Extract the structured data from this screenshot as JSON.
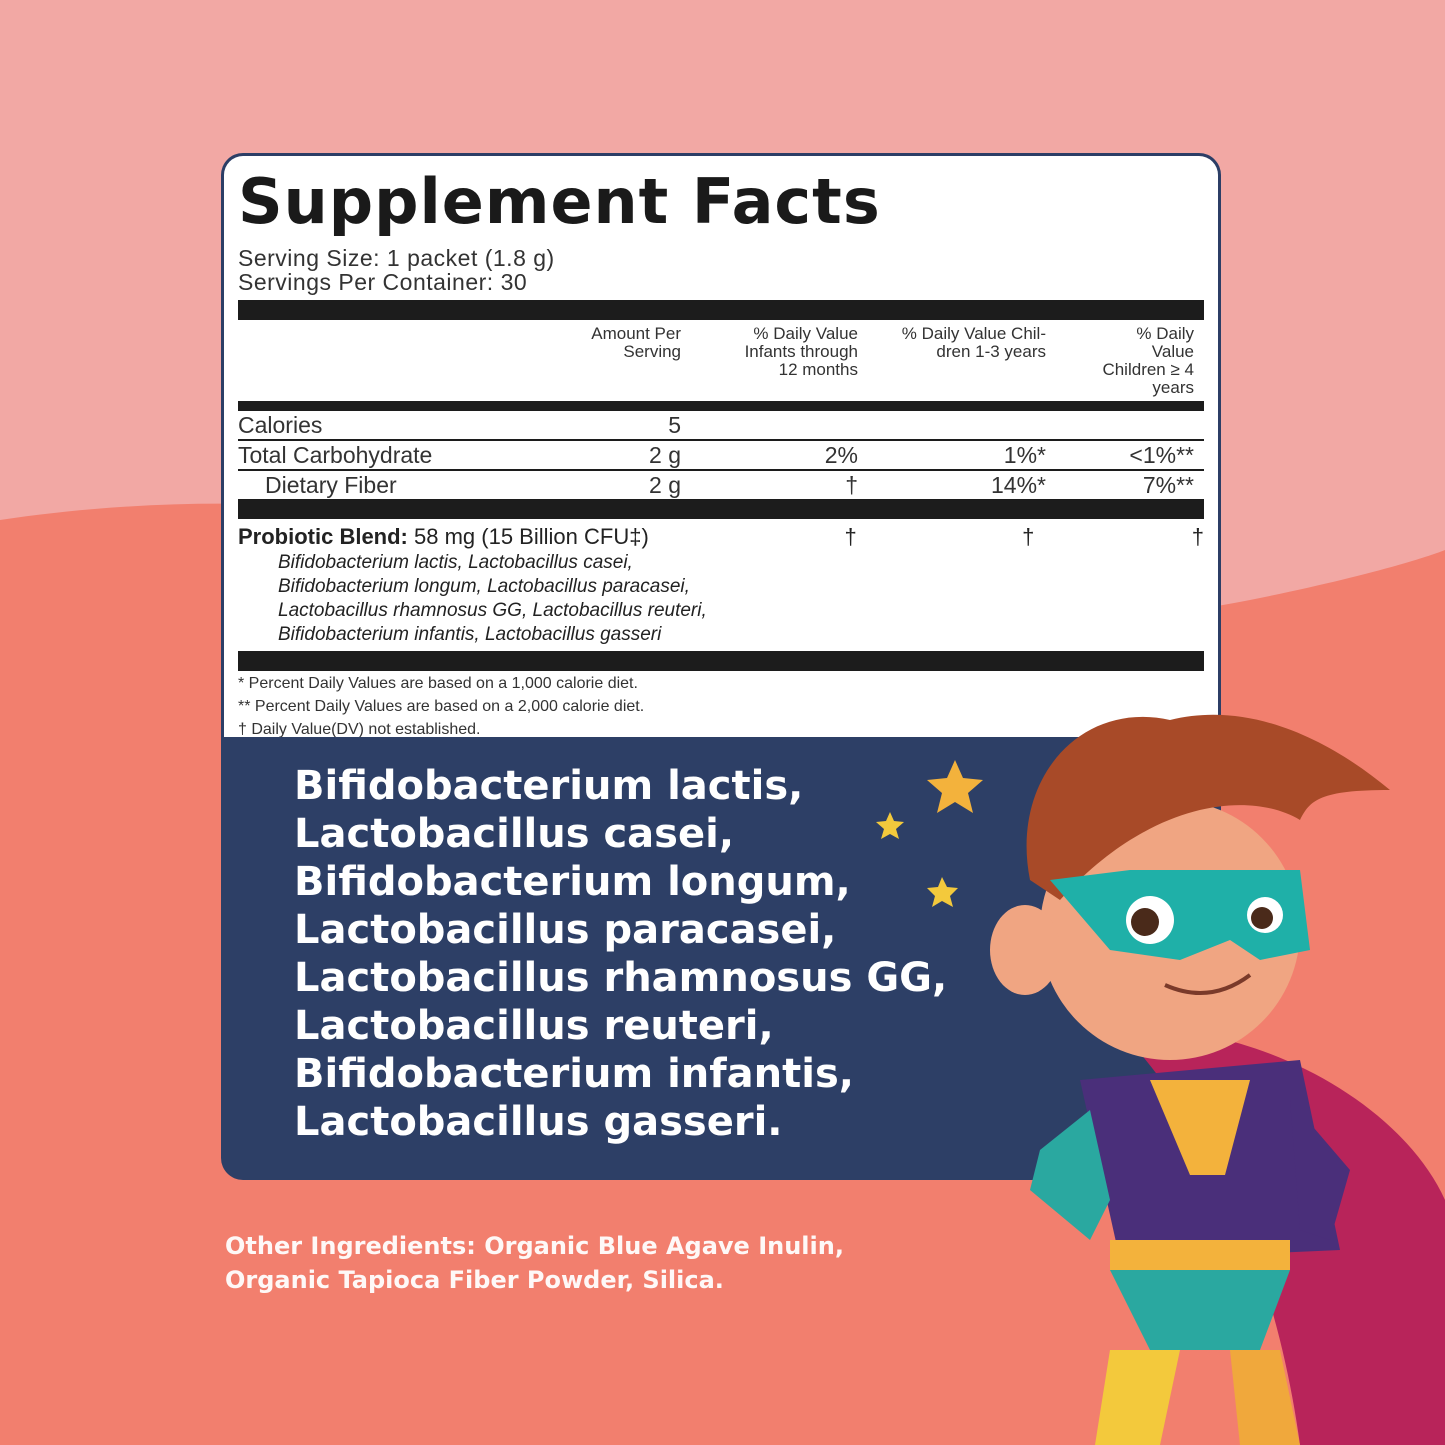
{
  "colors": {
    "background_top": "#f2a8a4",
    "background_wave": "#f27f6e",
    "panel": "#2d3f66",
    "label_bg": "#ffffff"
  },
  "label": {
    "title": "Supplement Facts",
    "serving_size": "Serving Size: 1 packet (1.8 g)",
    "servings_per_container": "Servings Per Container: 30",
    "headers": [
      "",
      "Amount Per Serving",
      "% Daily Value Infants through 12 months",
      "% Daily Value Chil-dren 1-3 years",
      "% Daily Value Children ≥ 4 years"
    ],
    "rows": [
      {
        "name": "Calories",
        "amount": "5",
        "infants": "",
        "children_1_3": "",
        "children_4": ""
      },
      {
        "name": "Total Carbohydrate",
        "amount": "2 g",
        "infants": "2%",
        "children_1_3": "1%*",
        "children_4": "<1%**"
      },
      {
        "name": "Dietary Fiber",
        "amount": "2 g",
        "infants": "†",
        "children_1_3": "14%*",
        "children_4": "7%**"
      }
    ],
    "blend": {
      "name": "Probiotic Blend:",
      "amount": "58 mg (15 Billion CFU‡)",
      "infants": "†",
      "children_1_3": "†",
      "children_4": "†",
      "strains": [
        "Bifidobacterium lactis, Lactobacillus casei,",
        "Bifidobacterium longum, Lactobacillus paracasei,",
        "Lactobacillus rhamnosus GG, Lactobacillus reuteri,",
        "Bifidobacterium infantis, Lactobacillus gasseri"
      ]
    },
    "footnotes": [
      "* Percent Daily Values are based on a 1,000 calorie diet.",
      "** Percent Daily Values are based on a 2,000 calorie diet.",
      "† Daily Value(DV) not established."
    ]
  },
  "strain_list": [
    "Bifidobacterium lactis,",
    "Lactobacillus casei,",
    "Bifidobacterium longum,",
    "Lactobacillus paracasei,",
    "Lactobacillus rhamnosus GG,",
    "Lactobacillus reuteri,",
    "Bifidobacterium infantis,",
    "Lactobacillus gasseri."
  ],
  "other_ingredients": [
    "Other Ingredients: Organic Blue Agave Inulin,",
    "Organic Tapioca Fiber Powder, Silica."
  ],
  "illustration": "superhero-kid"
}
